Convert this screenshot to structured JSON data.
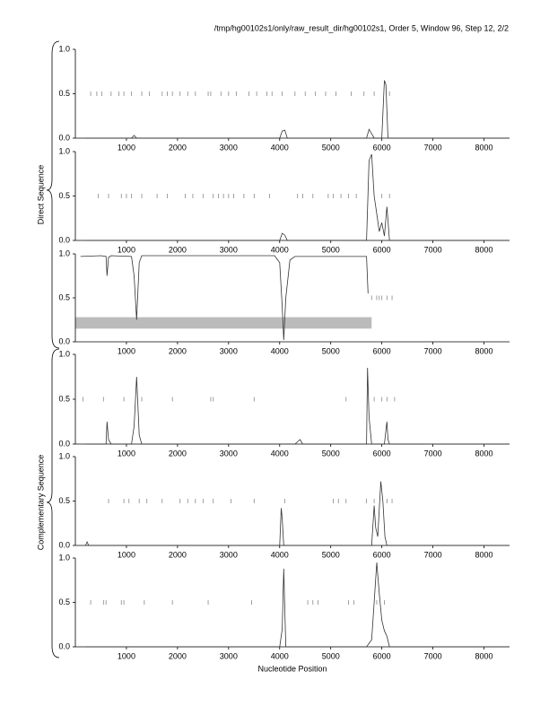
{
  "header": {
    "title": "/tmp/hg00102s1/only/raw_result_dir/hg00102s1, Order 5, Window 96, Step 12, 2/2"
  },
  "labels": {
    "direct": "Direct Sequence",
    "complementary": "Complementary Sequence",
    "x_axis": "Nucleotide Position"
  },
  "chart_data": [
    {
      "type": "line",
      "color": "#333333",
      "x": [
        200,
        1100,
        1150,
        1200,
        4000,
        4050,
        4100,
        4150,
        5700,
        5750,
        5800,
        5850,
        6000,
        6050,
        6080,
        6120,
        8500
      ],
      "values": [
        0,
        0,
        0.03,
        0,
        0,
        0.08,
        0.09,
        0,
        0,
        0.1,
        0.05,
        0,
        0,
        0.65,
        0.6,
        0,
        0
      ],
      "markers_x": [
        300,
        420,
        520,
        700,
        850,
        950,
        1100,
        1300,
        1450,
        1700,
        1800,
        1900,
        2050,
        2200,
        2350,
        2600,
        2650,
        2850,
        3000,
        3150,
        3400,
        3550,
        3750,
        3850,
        4050,
        4300,
        4500,
        4700,
        4900,
        5100,
        5400,
        5650,
        5850,
        6150
      ],
      "markers_y": 0.5,
      "xlim": [
        0,
        8500
      ],
      "ylim": [
        0,
        1
      ],
      "xticks": [
        1000,
        2000,
        3000,
        4000,
        5000,
        6000,
        7000,
        8000
      ],
      "yticks": [
        {
          "value": 0,
          "label": "0.0"
        },
        0.5,
        {
          "value": 1,
          "label": "1.0"
        }
      ]
    },
    {
      "type": "line",
      "color": "#333333",
      "x": [
        200,
        4000,
        4050,
        4100,
        4150,
        5700,
        5750,
        5800,
        5850,
        5900,
        5950,
        6000,
        6050,
        6100,
        6150,
        8500
      ],
      "values": [
        0,
        0,
        0.08,
        0.06,
        0,
        0,
        0.9,
        0.97,
        0.5,
        0.3,
        0.1,
        0.2,
        0.05,
        0.38,
        0,
        0
      ],
      "markers_x": [
        450,
        650,
        900,
        1000,
        1100,
        1300,
        1600,
        1800,
        2150,
        2300,
        2500,
        2700,
        2800,
        2900,
        3000,
        3100,
        3300,
        3500,
        3800,
        4350,
        4450,
        4650,
        4950,
        5050,
        5200,
        5350,
        5500,
        6000,
        6150
      ],
      "markers_y": 0.5,
      "xlim": [
        0,
        8500
      ],
      "ylim": [
        0,
        1
      ],
      "xticks": [
        1000,
        2000,
        3000,
        4000,
        5000,
        6000,
        7000,
        8000
      ],
      "yticks": [
        {
          "value": 0,
          "label": "0.0"
        },
        0.5,
        {
          "value": 1,
          "label": "1.0"
        }
      ]
    },
    {
      "type": "line",
      "color": "#333333",
      "x": [
        100,
        500,
        600,
        620,
        650,
        700,
        1100,
        1150,
        1200,
        1250,
        1300,
        3900,
        4000,
        4050,
        4080,
        4120,
        4200,
        4300,
        5700,
        5730
      ],
      "values": [
        0.97,
        0.98,
        0.97,
        0.75,
        0.96,
        0.98,
        0.97,
        0.75,
        0.25,
        0.9,
        0.98,
        0.98,
        0.9,
        0.4,
        0.02,
        0.5,
        0.93,
        0.97,
        0.97,
        0.55
      ],
      "band_x": [
        0,
        5800
      ],
      "band_y": [
        0.15,
        0.28
      ],
      "band_color": "#bbbbbb",
      "markers_x": [
        5800,
        5900,
        5950,
        6000,
        6100,
        6200
      ],
      "markers_y": 0.5,
      "xlim": [
        0,
        8500
      ],
      "ylim": [
        0,
        1
      ],
      "xticks": [
        1000,
        2000,
        3000,
        4000,
        5000,
        6000,
        7000,
        8000
      ],
      "yticks": [
        {
          "value": 0,
          "label": "0.0"
        },
        0.5,
        {
          "value": 1,
          "label": "1.0"
        }
      ]
    },
    {
      "type": "line",
      "color": "#333333",
      "x": [
        200,
        600,
        620,
        650,
        700,
        1100,
        1150,
        1200,
        1250,
        1300,
        4300,
        4400,
        4450,
        5700,
        5720,
        5750,
        5800,
        6050,
        6100,
        6120,
        6150,
        8500
      ],
      "values": [
        0,
        0,
        0.25,
        0.05,
        0,
        0,
        0.2,
        0.75,
        0.1,
        0,
        0,
        0.05,
        0,
        0,
        0.85,
        0.3,
        0,
        0,
        0.25,
        0.05,
        0,
        0
      ],
      "markers_x": [
        150,
        550,
        950,
        1300,
        1900,
        2650,
        2700,
        3500,
        5300,
        5850,
        6000,
        6100,
        6250
      ],
      "markers_y": 0.5,
      "xlim": [
        0,
        8500
      ],
      "ylim": [
        0,
        1
      ],
      "xticks": [
        1000,
        2000,
        3000,
        4000,
        5000,
        6000,
        7000,
        8000
      ],
      "yticks": [
        {
          "value": 0,
          "label": "0.0"
        },
        0.5,
        {
          "value": 1,
          "label": "1.0"
        }
      ]
    },
    {
      "type": "line",
      "color": "#333333",
      "x": [
        200,
        230,
        260,
        4000,
        4030,
        4050,
        4080,
        5800,
        5850,
        5880,
        5920,
        5980,
        6020,
        6060,
        6100,
        8500
      ],
      "values": [
        0,
        0.04,
        0,
        0,
        0.42,
        0.3,
        0,
        0,
        0.45,
        0.2,
        0.1,
        0.72,
        0.5,
        0.1,
        0,
        0
      ],
      "markers_x": [
        650,
        950,
        1050,
        1250,
        1400,
        1700,
        2050,
        2200,
        2350,
        2500,
        2700,
        3050,
        3500,
        4100,
        5050,
        5150,
        5300,
        5700,
        5850,
        6100,
        6200
      ],
      "markers_y": 0.5,
      "xlim": [
        0,
        8500
      ],
      "ylim": [
        0,
        1
      ],
      "xticks": [
        1000,
        2000,
        3000,
        4000,
        5000,
        6000,
        7000,
        8000
      ],
      "yticks": [
        {
          "value": 0,
          "label": "0.0"
        },
        0.5,
        {
          "value": 1,
          "label": "1.0"
        }
      ]
    },
    {
      "type": "line",
      "color": "#333333",
      "x": [
        200,
        4000,
        4050,
        4080,
        4120,
        5700,
        5800,
        5850,
        5900,
        5950,
        6000,
        6050,
        6100,
        6150,
        8500
      ],
      "values": [
        0,
        0,
        0.2,
        0.88,
        0,
        0,
        0.08,
        0.5,
        0.95,
        0.6,
        0.3,
        0.18,
        0.12,
        0,
        0
      ],
      "markers_x": [
        300,
        550,
        600,
        900,
        950,
        1350,
        1900,
        2600,
        3450,
        4550,
        4650,
        4750,
        5350,
        5450,
        5900,
        6050
      ],
      "markers_y": 0.5,
      "xlim": [
        0,
        8500
      ],
      "ylim": [
        0,
        1
      ],
      "xticks": [
        1000,
        2000,
        3000,
        4000,
        5000,
        6000,
        7000,
        8000
      ],
      "yticks": [
        {
          "value": 0,
          "label": "0.0"
        },
        0.5,
        {
          "value": 1,
          "label": "1.0"
        }
      ]
    }
  ]
}
